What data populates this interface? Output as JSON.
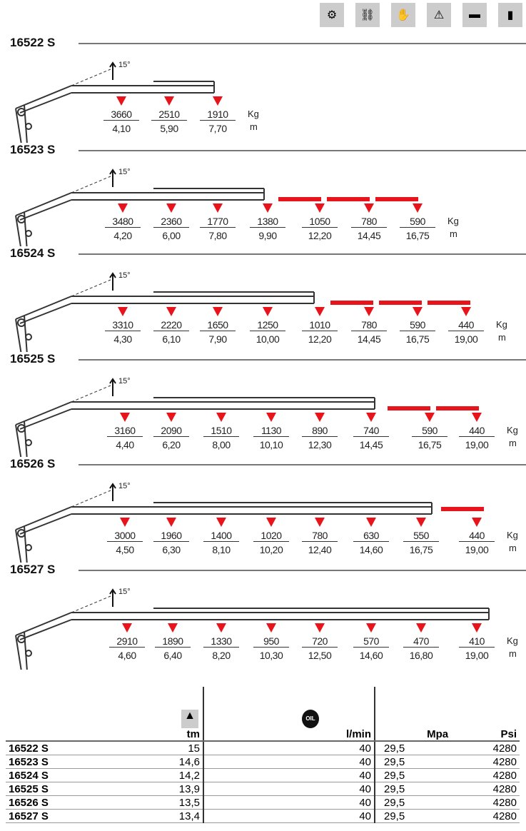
{
  "header_icons": [
    "slewing-ring-icon",
    "linkage-icon",
    "hand-control-icon",
    "crane-load-icon",
    "rig-cylinder-icon",
    "stabilizer-icon"
  ],
  "colors": {
    "accent": "#e8141b",
    "text": "#222222"
  },
  "units": {
    "kg": "Kg",
    "m": "m"
  },
  "angle_label": "15°",
  "models": [
    {
      "name": "16522 S",
      "extensions": 0,
      "loads": [
        {
          "kg": "3660",
          "m": "4,10"
        },
        {
          "kg": "2510",
          "m": "5,90"
        },
        {
          "kg": "1910",
          "m": "7,70"
        }
      ]
    },
    {
      "name": "16523 S",
      "extensions": 3,
      "loads": [
        {
          "kg": "3480",
          "m": "4,20"
        },
        {
          "kg": "2360",
          "m": "6,00"
        },
        {
          "kg": "1770",
          "m": "7,80"
        },
        {
          "kg": "1380",
          "m": "9,90"
        },
        {
          "kg": "1050",
          "m": "12,20"
        },
        {
          "kg": "780",
          "m": "14,45"
        },
        {
          "kg": "590",
          "m": "16,75"
        }
      ]
    },
    {
      "name": "16524 S",
      "extensions": 3,
      "loads": [
        {
          "kg": "3310",
          "m": "4,30"
        },
        {
          "kg": "2220",
          "m": "6,10"
        },
        {
          "kg": "1650",
          "m": "7,90"
        },
        {
          "kg": "1250",
          "m": "10,00"
        },
        {
          "kg": "1010",
          "m": "12,20"
        },
        {
          "kg": "780",
          "m": "14,45"
        },
        {
          "kg": "590",
          "m": "16,75"
        },
        {
          "kg": "440",
          "m": "19,00"
        }
      ]
    },
    {
      "name": "16525 S",
      "extensions": 2,
      "loads": [
        {
          "kg": "3160",
          "m": "4,40"
        },
        {
          "kg": "2090",
          "m": "6,20"
        },
        {
          "kg": "1510",
          "m": "8,00"
        },
        {
          "kg": "1130",
          "m": "10,10"
        },
        {
          "kg": "890",
          "m": "12,30"
        },
        {
          "kg": "740",
          "m": "14,45"
        },
        {
          "kg": "590",
          "m": "16,75"
        },
        {
          "kg": "440",
          "m": "19,00"
        }
      ]
    },
    {
      "name": "16526 S",
      "extensions": 1,
      "loads": [
        {
          "kg": "3000",
          "m": "4,50"
        },
        {
          "kg": "1960",
          "m": "6,30"
        },
        {
          "kg": "1400",
          "m": "8,10"
        },
        {
          "kg": "1020",
          "m": "10,20"
        },
        {
          "kg": "780",
          "m": "12,40"
        },
        {
          "kg": "630",
          "m": "14,60"
        },
        {
          "kg": "550",
          "m": "16,75"
        },
        {
          "kg": "440",
          "m": "19,00"
        }
      ]
    },
    {
      "name": "16527 S",
      "extensions": 0,
      "loads": [
        {
          "kg": "2910",
          "m": "4,60"
        },
        {
          "kg": "1890",
          "m": "6,40"
        },
        {
          "kg": "1330",
          "m": "8,20"
        },
        {
          "kg": "950",
          "m": "10,30"
        },
        {
          "kg": "720",
          "m": "12,50"
        },
        {
          "kg": "570",
          "m": "14,60"
        },
        {
          "kg": "470",
          "m": "16,80"
        },
        {
          "kg": "410",
          "m": "19,00"
        }
      ]
    }
  ],
  "table": {
    "headers": {
      "moment_icon": "lifting-moment-icon",
      "moment": "tm",
      "oil_icon": "oil-flow-icon",
      "oil_icon_text": "OIL",
      "flow": "l/min",
      "pressure_mpa": "Mpa",
      "pressure_psi": "Psi"
    },
    "rows": [
      {
        "model": "16522 S",
        "tm": "15",
        "flow": "40",
        "mpa": "29,5",
        "psi": "4280"
      },
      {
        "model": "16523 S",
        "tm": "14,6",
        "flow": "40",
        "mpa": "29,5",
        "psi": "4280"
      },
      {
        "model": "16524 S",
        "tm": "14,2",
        "flow": "40",
        "mpa": "29,5",
        "psi": "4280"
      },
      {
        "model": "16525 S",
        "tm": "13,9",
        "flow": "40",
        "mpa": "29,5",
        "psi": "4280"
      },
      {
        "model": "16526 S",
        "tm": "13,5",
        "flow": "40",
        "mpa": "29,5",
        "psi": "4280"
      },
      {
        "model": "16527 S",
        "tm": "13,4",
        "flow": "40",
        "mpa": "29,5",
        "psi": "4280"
      }
    ]
  }
}
